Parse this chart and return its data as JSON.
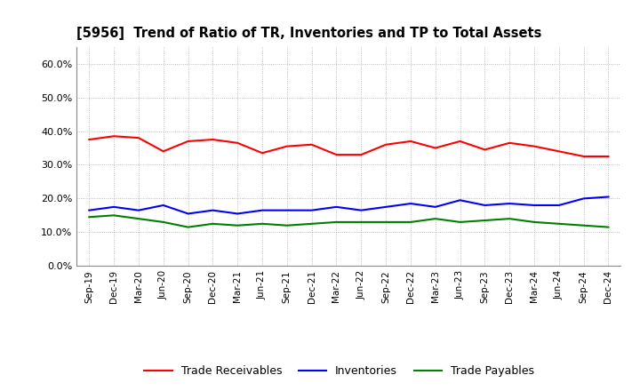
{
  "title": "[5956]  Trend of Ratio of TR, Inventories and TP to Total Assets",
  "x_labels": [
    "Sep-19",
    "Dec-19",
    "Mar-20",
    "Jun-20",
    "Sep-20",
    "Dec-20",
    "Mar-21",
    "Jun-21",
    "Sep-21",
    "Dec-21",
    "Mar-22",
    "Jun-22",
    "Sep-22",
    "Dec-22",
    "Mar-23",
    "Jun-23",
    "Sep-23",
    "Dec-23",
    "Mar-24",
    "Jun-24",
    "Sep-24",
    "Dec-24"
  ],
  "trade_receivables": [
    0.375,
    0.385,
    0.38,
    0.34,
    0.37,
    0.375,
    0.365,
    0.335,
    0.355,
    0.36,
    0.33,
    0.33,
    0.36,
    0.37,
    0.35,
    0.37,
    0.345,
    0.365,
    0.355,
    0.34,
    0.325,
    0.325
  ],
  "inventories": [
    0.165,
    0.175,
    0.165,
    0.18,
    0.155,
    0.165,
    0.155,
    0.165,
    0.165,
    0.165,
    0.175,
    0.165,
    0.175,
    0.185,
    0.175,
    0.195,
    0.18,
    0.185,
    0.18,
    0.18,
    0.2,
    0.205
  ],
  "trade_payables": [
    0.145,
    0.15,
    0.14,
    0.13,
    0.115,
    0.125,
    0.12,
    0.125,
    0.12,
    0.125,
    0.13,
    0.13,
    0.13,
    0.13,
    0.14,
    0.13,
    0.135,
    0.14,
    0.13,
    0.125,
    0.12,
    0.115
  ],
  "tr_color": "#ff0000",
  "inv_color": "#0000ff",
  "tp_color": "#008000",
  "ylim": [
    0.0,
    0.65
  ],
  "yticks": [
    0.0,
    0.1,
    0.2,
    0.3,
    0.4,
    0.5,
    0.6
  ],
  "grid_color": "#aaaaaa",
  "background_color": "#ffffff",
  "legend_labels": [
    "Trade Receivables",
    "Inventories",
    "Trade Payables"
  ]
}
